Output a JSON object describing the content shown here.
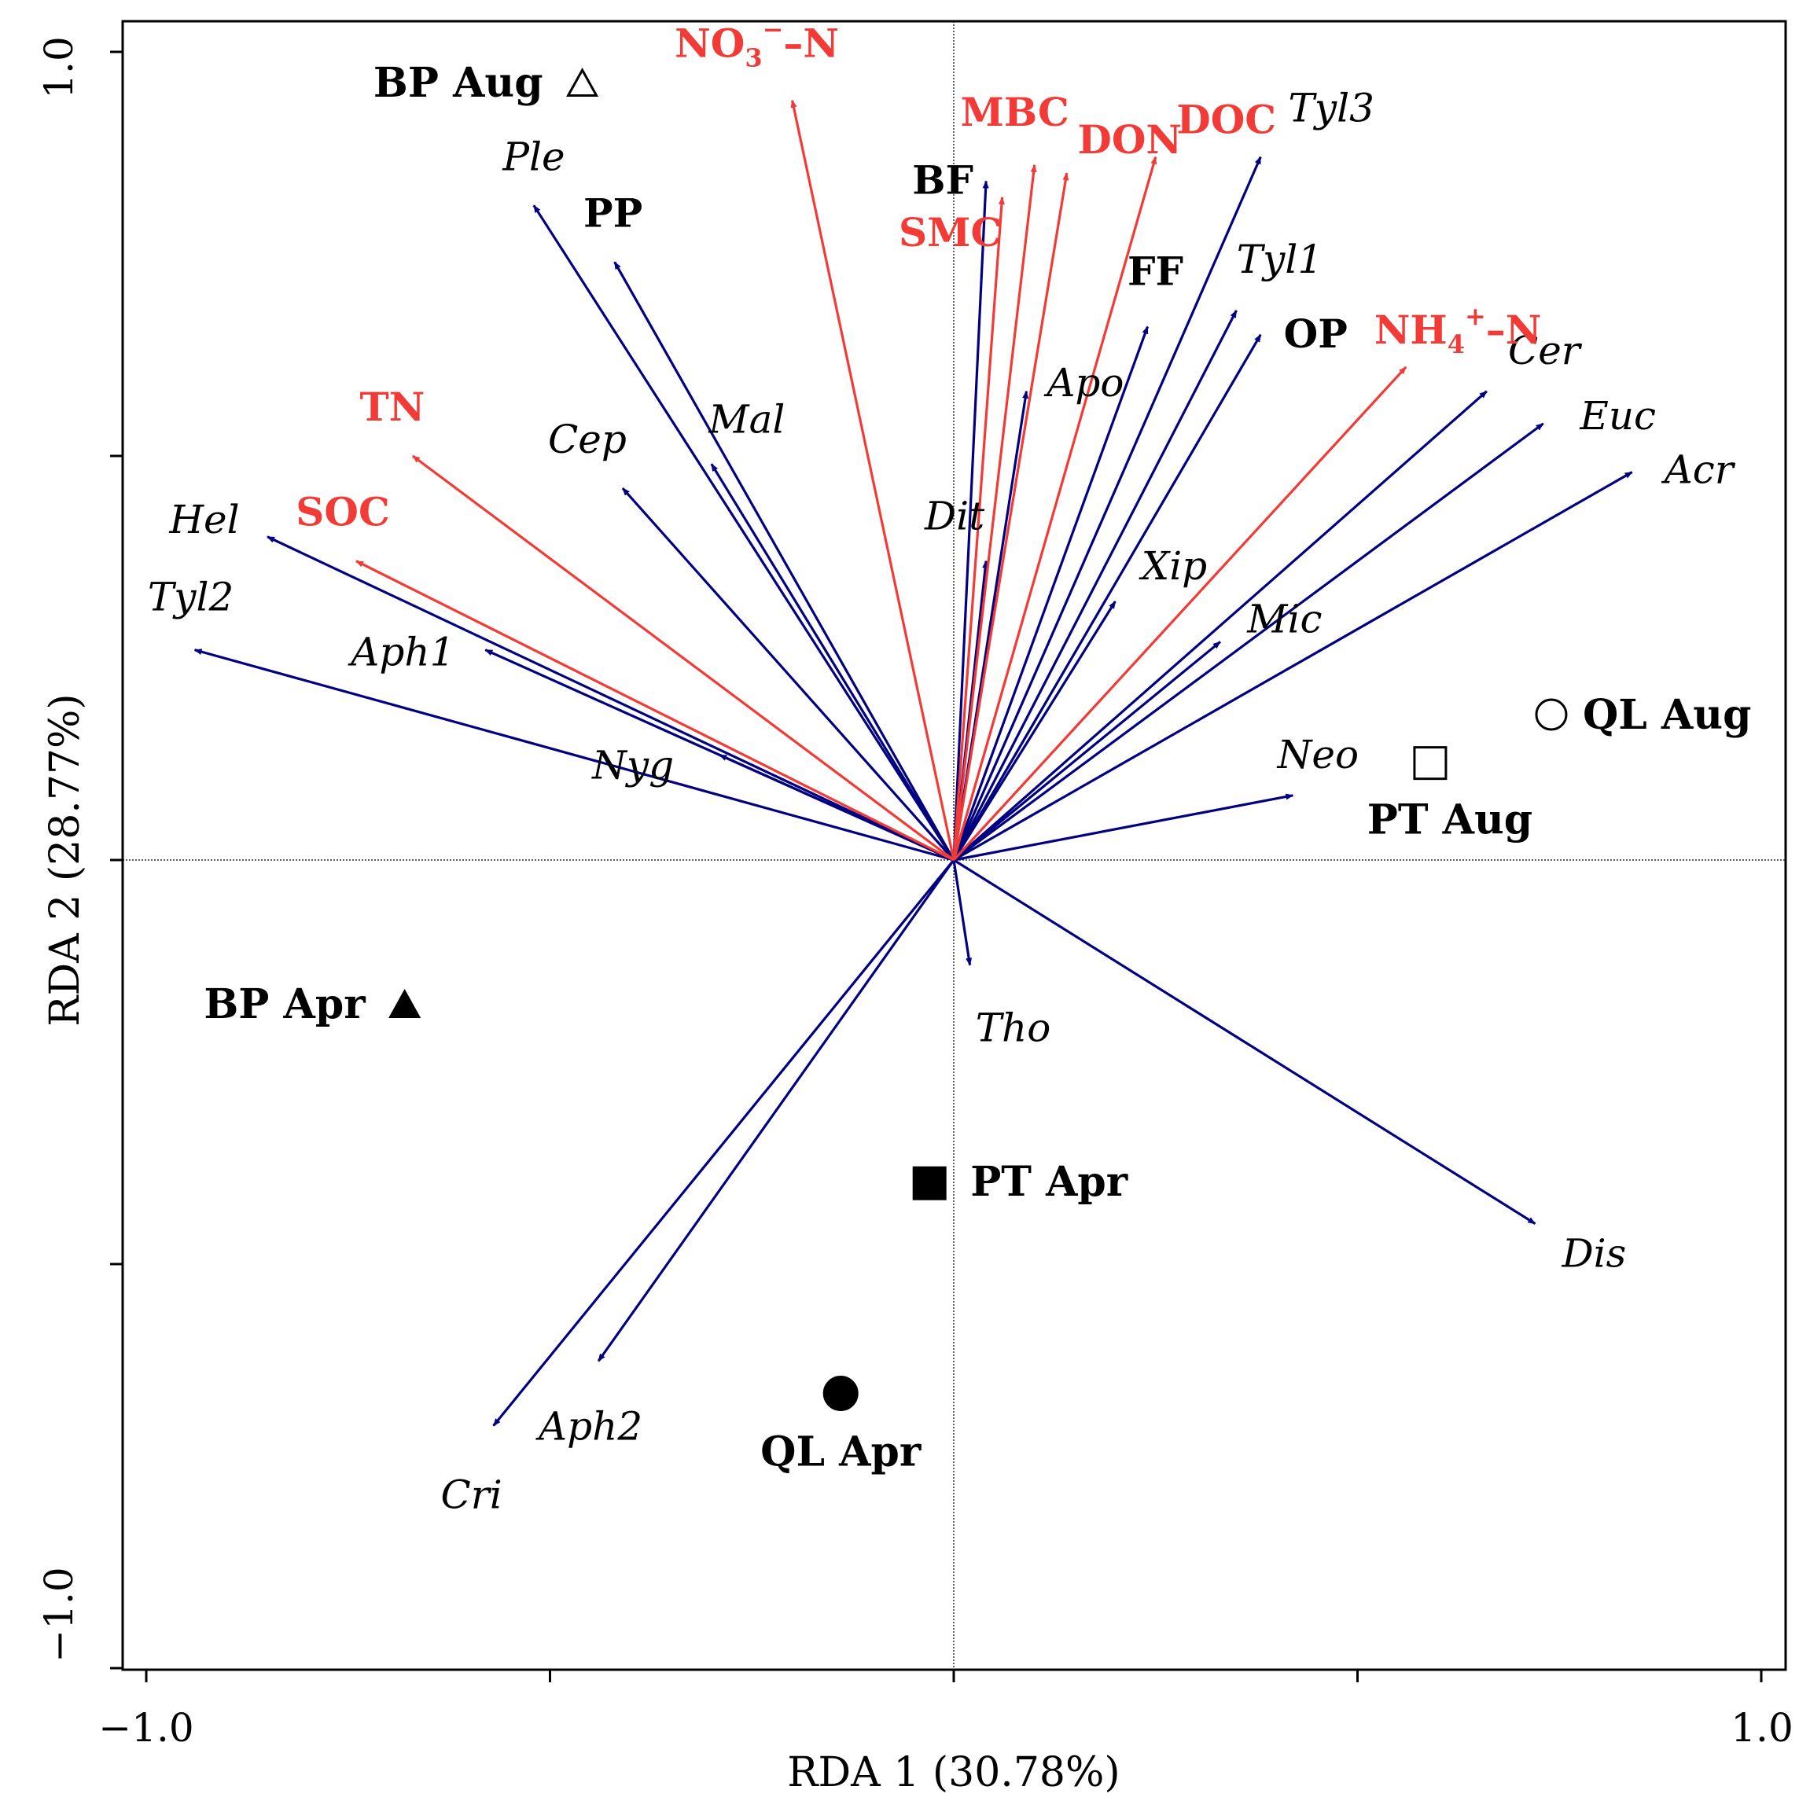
{
  "chart_data": {
    "type": "rda-biplot",
    "xlabel": "RDA 1 (30.78%)",
    "ylabel": "RDA 2 (28.77%)",
    "xlim": [
      -1.0,
      1.0
    ],
    "ylim": [
      -1.0,
      1.0
    ],
    "x_tick_labels": [
      "−1.0",
      "1.0"
    ],
    "y_tick_labels": [
      "−1.0",
      "1.0"
    ],
    "colors": {
      "species": "#000080",
      "chemical": "#f23a36",
      "text": "#000000"
    },
    "species": [
      {
        "name": "Ple",
        "x": -0.52,
        "y": 0.81
      },
      {
        "name": "Mal",
        "x": -0.3,
        "y": 0.49
      },
      {
        "name": "Cep",
        "x": -0.41,
        "y": 0.46
      },
      {
        "name": "Hel",
        "x": -0.85,
        "y": 0.4
      },
      {
        "name": "Tyl2",
        "x": -0.94,
        "y": 0.26
      },
      {
        "name": "Aph1",
        "x": -0.58,
        "y": 0.26
      },
      {
        "name": "Nyg",
        "x": -0.29,
        "y": 0.13
      },
      {
        "name": "Tyl3",
        "x": 0.38,
        "y": 0.87
      },
      {
        "name": "Tyl1",
        "x": 0.35,
        "y": 0.68
      },
      {
        "name": "Apo",
        "x": 0.09,
        "y": 0.58
      },
      {
        "name": "Dit",
        "x": 0.04,
        "y": 0.37
      },
      {
        "name": "Xip",
        "x": 0.2,
        "y": 0.32
      },
      {
        "name": "Mic",
        "x": 0.33,
        "y": 0.27
      },
      {
        "name": "Cer",
        "x": 0.66,
        "y": 0.58
      },
      {
        "name": "Euc",
        "x": 0.73,
        "y": 0.54
      },
      {
        "name": "Acr",
        "x": 0.84,
        "y": 0.48
      },
      {
        "name": "Neo",
        "x": 0.42,
        "y": 0.08
      },
      {
        "name": "Tho",
        "x": 0.02,
        "y": -0.13
      },
      {
        "name": "Dis",
        "x": 0.72,
        "y": -0.45
      },
      {
        "name": "Aph2",
        "x": -0.44,
        "y": -0.62
      },
      {
        "name": "Cri",
        "x": -0.57,
        "y": -0.7
      }
    ],
    "env_bold": [
      {
        "name": "BF",
        "x": 0.04,
        "y": 0.84
      },
      {
        "name": "PP",
        "x": -0.42,
        "y": 0.74
      },
      {
        "name": "FF",
        "x": 0.24,
        "y": 0.66
      },
      {
        "name": "OP",
        "x": 0.38,
        "y": 0.65
      }
    ],
    "env_chemical": [
      {
        "name_main": "NO",
        "name_sub": "3",
        "name_sup": "−",
        "name_tail": "–N",
        "x": -0.2,
        "y": 0.94
      },
      {
        "name": "MBC",
        "x": 0.1,
        "y": 0.86
      },
      {
        "name": "SMC",
        "x": 0.06,
        "y": 0.82
      },
      {
        "name": "DON",
        "x": 0.14,
        "y": 0.85
      },
      {
        "name": "DOC",
        "x": 0.25,
        "y": 0.87
      },
      {
        "name_main": "NH",
        "name_sub": "4",
        "name_sup": "+",
        "name_tail": "–N",
        "x": 0.56,
        "y": 0.61
      },
      {
        "name": "TN",
        "x": -0.67,
        "y": 0.5
      },
      {
        "name": "SOC",
        "x": -0.74,
        "y": 0.37
      }
    ],
    "sites": [
      {
        "name": "BP Aug",
        "x": -0.46,
        "y": 0.96,
        "marker": "triangle-open"
      },
      {
        "name": "BP Apr",
        "x": -0.68,
        "y": -0.18,
        "marker": "triangle-filled"
      },
      {
        "name": "QL Aug",
        "x": 0.74,
        "y": 0.18,
        "marker": "circle-open"
      },
      {
        "name": "PT Aug",
        "x": 0.59,
        "y": 0.12,
        "marker": "square-open"
      },
      {
        "name": "PT Apr",
        "x": -0.03,
        "y": -0.4,
        "marker": "square-filled"
      },
      {
        "name": "QL Apr",
        "x": -0.14,
        "y": -0.66,
        "marker": "circle-filled"
      }
    ]
  }
}
